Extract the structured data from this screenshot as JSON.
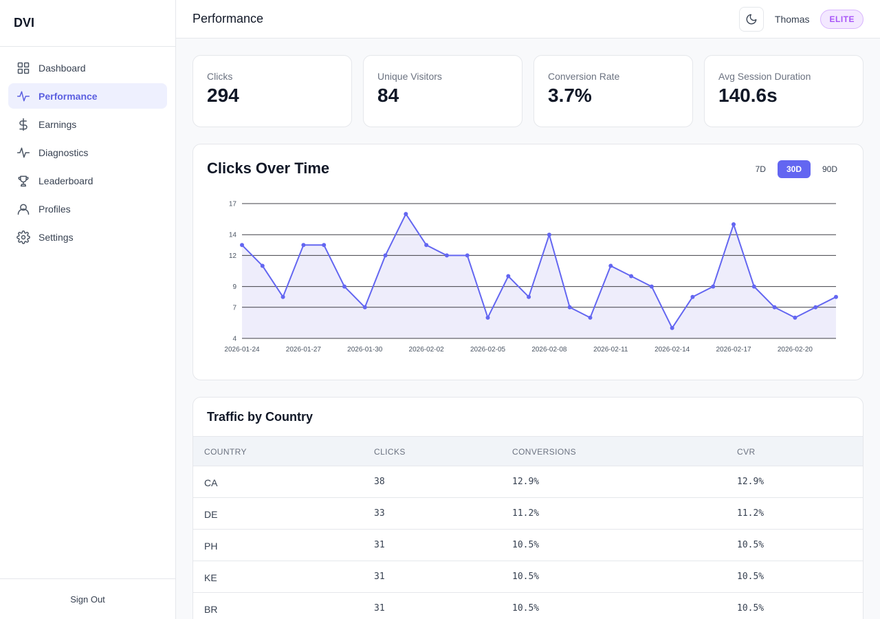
{
  "app": {
    "brand": "DVI"
  },
  "sidebar": {
    "items": [
      {
        "label": "Dashboard",
        "icon": "grid-icon"
      },
      {
        "label": "Performance",
        "icon": "activity-icon"
      },
      {
        "label": "Earnings",
        "icon": "dollar-icon"
      },
      {
        "label": "Diagnostics",
        "icon": "pulse-icon"
      },
      {
        "label": "Leaderboard",
        "icon": "trophy-icon"
      },
      {
        "label": "Profiles",
        "icon": "user-icon"
      },
      {
        "label": "Settings",
        "icon": "gear-icon"
      }
    ],
    "active_index": 1,
    "sign_out": "Sign Out"
  },
  "header": {
    "title": "Performance",
    "username": "Thomas",
    "tier": "ELITE"
  },
  "stats": [
    {
      "label": "Clicks",
      "value": "294"
    },
    {
      "label": "Unique Visitors",
      "value": "84"
    },
    {
      "label": "Conversion Rate",
      "value": "3.7%"
    },
    {
      "label": "Avg Session Duration",
      "value": "140.6s"
    }
  ],
  "chart": {
    "title": "Clicks Over Time",
    "ranges": [
      "7D",
      "30D",
      "90D"
    ],
    "active_range": "30D"
  },
  "chart_data": {
    "type": "line",
    "title": "Clicks Over Time",
    "xlabel": "",
    "ylabel": "",
    "y_ticks": [
      4,
      7,
      9,
      12,
      14,
      17
    ],
    "ylim": [
      4,
      17
    ],
    "x_tick_labels": [
      "2026-01-24",
      "2026-01-27",
      "2026-01-30",
      "2026-02-02",
      "2026-02-05",
      "2026-02-08",
      "2026-02-11",
      "2026-02-14",
      "2026-02-17",
      "2026-02-20"
    ],
    "x": [
      "2026-01-24",
      "2026-01-25",
      "2026-01-26",
      "2026-01-27",
      "2026-01-28",
      "2026-01-29",
      "2026-01-30",
      "2026-01-31",
      "2026-02-01",
      "2026-02-02",
      "2026-02-03",
      "2026-02-04",
      "2026-02-05",
      "2026-02-06",
      "2026-02-07",
      "2026-02-08",
      "2026-02-09",
      "2026-02-10",
      "2026-02-11",
      "2026-02-12",
      "2026-02-13",
      "2026-02-14",
      "2026-02-15",
      "2026-02-16",
      "2026-02-17",
      "2026-02-18",
      "2026-02-19",
      "2026-02-20",
      "2026-02-21",
      "2026-02-22"
    ],
    "series": [
      {
        "values": [
          13,
          11,
          8,
          13,
          13,
          9,
          7,
          12,
          16,
          13,
          12,
          12,
          6,
          10,
          8,
          14,
          7,
          6,
          11,
          10,
          9,
          5,
          8,
          9,
          15,
          9,
          7,
          6,
          7,
          8
        ]
      }
    ],
    "grid": true,
    "fill": true,
    "line_color": "#6366f1",
    "fill_color": "#eeedfb"
  },
  "table": {
    "title": "Traffic by Country",
    "columns": [
      "COUNTRY",
      "CLICKS",
      "CONVERSIONS",
      "CVR"
    ],
    "rows": [
      [
        "CA",
        "38",
        "12.9%",
        "12.9%"
      ],
      [
        "DE",
        "33",
        "11.2%",
        "11.2%"
      ],
      [
        "PH",
        "31",
        "10.5%",
        "10.5%"
      ],
      [
        "KE",
        "31",
        "10.5%",
        "10.5%"
      ],
      [
        "BR",
        "31",
        "10.5%",
        "10.5%"
      ]
    ]
  }
}
